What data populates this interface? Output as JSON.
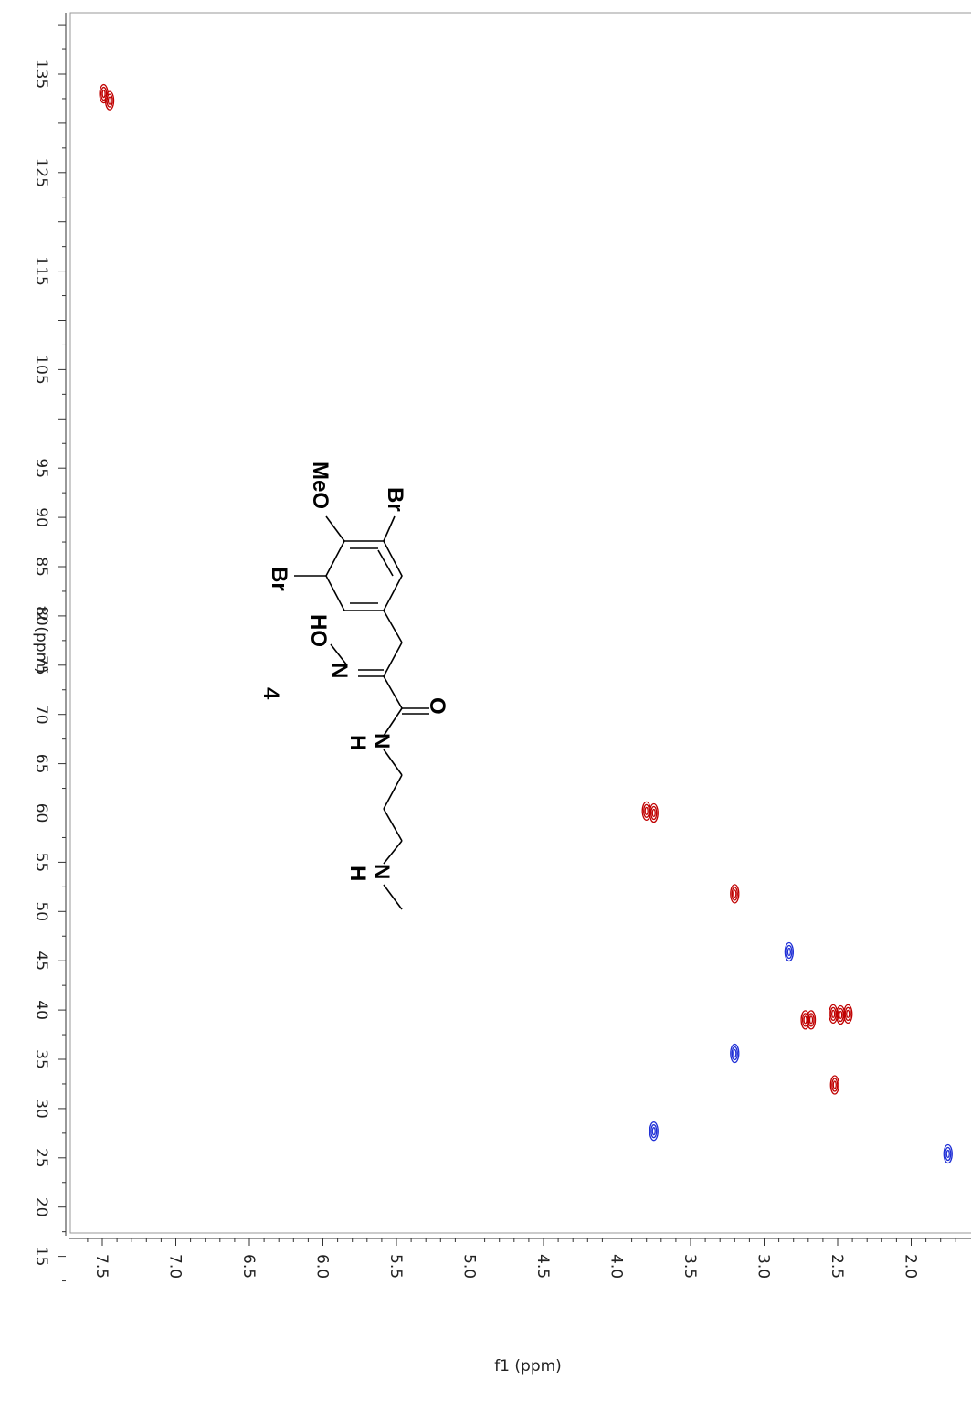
{
  "chart_data": {
    "type": "scatter",
    "title": "",
    "xlabel": "f1 (ppm)",
    "ylabel": "f2 (ppm)",
    "xlim": [
      7.6,
      1.7
    ],
    "ylim": [
      140,
      12
    ],
    "x_ticks": [
      "7.5",
      "7.0",
      "6.5",
      "6.0",
      "5.5",
      "5.0",
      "4.5",
      "4.0",
      "3.5",
      "3.0",
      "2.5",
      "2.0"
    ],
    "y_ticks": [
      "135",
      "125",
      "115",
      "105",
      "95",
      "90",
      "85",
      "80",
      "75",
      "70",
      "65",
      "60",
      "55",
      "50",
      "45",
      "40",
      "35",
      "30",
      "25",
      "20",
      "15"
    ],
    "colors": {
      "positive": "#c00000",
      "negative": "#1f2fd6"
    },
    "series": [
      {
        "phase": "positive",
        "points": [
          {
            "x": 7.45,
            "y": 132.3
          },
          {
            "x": 7.49,
            "y": 133.0
          },
          {
            "x": 3.75,
            "y": 60.0
          },
          {
            "x": 3.8,
            "y": 60.2
          },
          {
            "x": 3.2,
            "y": 51.8
          },
          {
            "x": 2.72,
            "y": 39.0
          },
          {
            "x": 2.68,
            "y": 39.0
          },
          {
            "x": 2.48,
            "y": 39.5
          },
          {
            "x": 2.53,
            "y": 39.6
          },
          {
            "x": 2.43,
            "y": 39.6
          },
          {
            "x": 2.52,
            "y": 32.4
          }
        ]
      },
      {
        "phase": "negative",
        "points": [
          {
            "x": 2.83,
            "y": 45.9
          },
          {
            "x": 3.2,
            "y": 35.6
          },
          {
            "x": 3.75,
            "y": 27.7
          },
          {
            "x": 1.75,
            "y": 25.4
          }
        ]
      }
    ]
  },
  "structure": {
    "compound_label": "4",
    "atoms": [
      "MeO",
      "Br",
      "Br",
      "HO",
      "N",
      "O",
      "N",
      "H",
      "N",
      "H"
    ]
  }
}
